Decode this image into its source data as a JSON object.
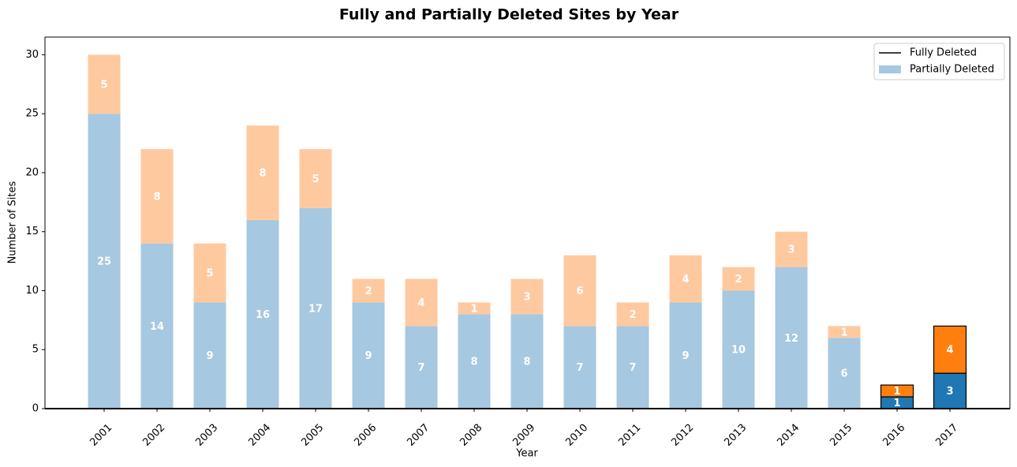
{
  "chart_data": {
    "type": "stacked_bar",
    "title": "Fully and Partially Deleted Sites by Year",
    "x_label": "Year",
    "y_label": "Number of Sites",
    "categories": [
      "2001",
      "2002",
      "2003",
      "2004",
      "2005",
      "2006",
      "2007",
      "2008",
      "2009",
      "2010",
      "2011",
      "2012",
      "2013",
      "2014",
      "2015",
      "2016",
      "2017"
    ],
    "series": [
      {
        "color": "#a6c8e0",
        "highlight_color": "#1f77b4",
        "values": [
          25,
          14,
          9,
          16,
          17,
          9,
          7,
          8,
          8,
          7,
          7,
          9,
          10,
          12,
          6,
          1,
          3
        ]
      },
      {
        "color": "#ffc99f",
        "highlight_color": "#ff7f0e",
        "values": [
          5,
          8,
          5,
          8,
          5,
          2,
          4,
          1,
          3,
          6,
          2,
          4,
          2,
          3,
          1,
          1,
          4
        ]
      }
    ],
    "highlighted_categories": [
      "2016",
      "2017"
    ],
    "legend": [
      {
        "name": "Fully Deleted",
        "color": "#000000",
        "marker": "line"
      },
      {
        "name": "Partially Deleted",
        "color": "#a6c8e0",
        "marker": "patch"
      }
    ],
    "legend_position": "upper right",
    "ylim": [
      0,
      31.5
    ],
    "yticks": [
      0,
      5,
      10,
      15,
      20,
      25,
      30
    ]
  }
}
